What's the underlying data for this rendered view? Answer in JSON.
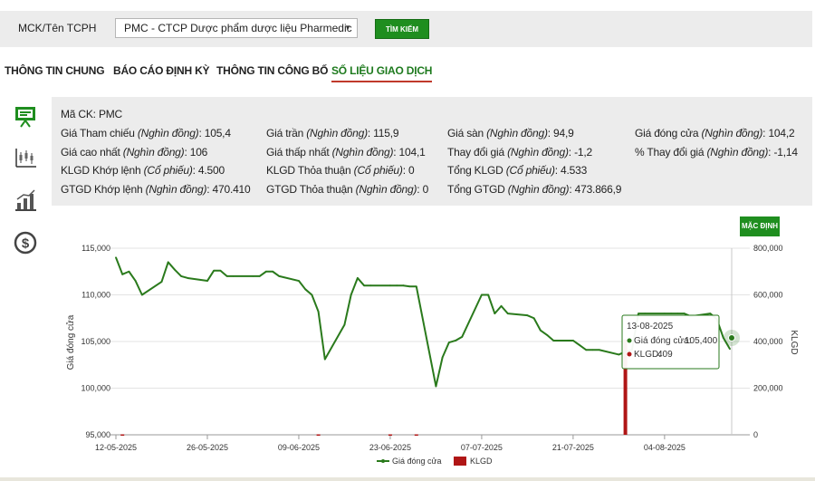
{
  "search": {
    "label": "MCK/Tên TCPH",
    "selected": "PMC - CTCP Dược phẩm dược liệu Pharmedic",
    "button": "TÌM KIẾM"
  },
  "tabs": [
    {
      "label": "THÔNG TIN CHUNG"
    },
    {
      "label": "BÁO CÁO ĐỊNH KỲ"
    },
    {
      "label": "THÔNG TIN CÔNG BỐ"
    },
    {
      "label": "SỐ LIỆU GIAO DỊCH",
      "active": true
    }
  ],
  "sidebar_icons": [
    "presentation-icon",
    "candlestick-icon",
    "bar-chart-icon",
    "dollar-icon"
  ],
  "info": {
    "code_label": "Mã CK:",
    "code": "PMC",
    "rows": [
      [
        {
          "label": "Giá Tham chiếu",
          "unit": "(Nghìn đồng)",
          "value": "105,4"
        },
        {
          "label": "Giá trần",
          "unit": "(Nghìn đồng)",
          "value": "115,9"
        },
        {
          "label": "Giá sàn",
          "unit": "(Nghìn đồng)",
          "value": "94,9"
        },
        {
          "label": "Giá đóng cửa",
          "unit": "(Nghìn đồng)",
          "value": "104,2"
        }
      ],
      [
        {
          "label": "Giá cao nhất",
          "unit": "(Nghìn đồng)",
          "value": "106"
        },
        {
          "label": "Giá thấp nhất",
          "unit": "(Nghìn đồng)",
          "value": "104,1"
        },
        {
          "label": "Thay đổi giá",
          "unit": "(Nghìn đồng)",
          "value": "-1,2"
        },
        {
          "label": "% Thay đổi giá",
          "unit": "(Nghìn đồng)",
          "value": "-1,14"
        }
      ],
      [
        {
          "label": "KLGD Khớp lệnh",
          "unit": "(Cổ phiếu)",
          "value": "4.500"
        },
        {
          "label": "KLGD Thỏa thuận",
          "unit": "(Cổ phiếu)",
          "value": "0"
        },
        {
          "label": "Tổng KLGD",
          "unit": "(Cổ phiếu)",
          "value": "4.533"
        }
      ],
      [
        {
          "label": "GTGD Khớp lệnh",
          "unit": "(Nghìn đồng)",
          "value": "470.410"
        },
        {
          "label": "GTGD Thỏa thuận",
          "unit": "(Nghìn đồng)",
          "value": "0"
        },
        {
          "label": "Tổng GTGD",
          "unit": "(Nghìn đồng)",
          "value": "473.866,9"
        }
      ]
    ]
  },
  "chart_button": "MẶC ĐỊNH",
  "chart_data": {
    "type": "line",
    "ylabel": "Giá đóng cửa",
    "y2label": "KLGD",
    "ylim": [
      95000,
      115000
    ],
    "y2lim": [
      0,
      800000
    ],
    "yticks": [
      "95,000",
      "100,000",
      "105,000",
      "110,000",
      "115,000"
    ],
    "y2ticks": [
      "0",
      "200,000",
      "400,000",
      "600,000",
      "800,000"
    ],
    "xticks": [
      "12-05-2025",
      "26-05-2025",
      "09-06-2025",
      "23-06-2025",
      "07-07-2025",
      "21-07-2025",
      "04-08-2025"
    ],
    "grid": true,
    "legend": "bottom",
    "series": [
      {
        "name": "Giá đóng cửa",
        "type": "line",
        "color": "#2a7a1c",
        "x": [
          "12-05",
          "13-05",
          "14-05",
          "15-05",
          "16-05",
          "19-05",
          "20-05",
          "21-05",
          "22-05",
          "23-05",
          "26-05",
          "27-05",
          "28-05",
          "29-05",
          "30-05",
          "02-06",
          "03-06",
          "04-06",
          "05-06",
          "06-06",
          "09-06",
          "10-06",
          "11-06",
          "12-06",
          "13-06",
          "16-06",
          "17-06",
          "18-06",
          "19-06",
          "20-06",
          "23-06",
          "24-06",
          "25-06",
          "26-06",
          "27-06",
          "30-06",
          "01-07",
          "02-07",
          "03-07",
          "04-07",
          "07-07",
          "08-07",
          "09-07",
          "10-07",
          "11-07",
          "14-07",
          "15-07",
          "16-07",
          "17-07",
          "18-07",
          "21-07",
          "22-07",
          "23-07",
          "24-07",
          "25-07",
          "28-07",
          "29-07",
          "30-07",
          "31-07",
          "01-08",
          "04-08",
          "05-08",
          "06-08",
          "07-08",
          "08-08",
          "11-08",
          "12-08",
          "13-08",
          "14-08"
        ],
        "values": [
          114000,
          112200,
          112500,
          111500,
          110000,
          111400,
          113500,
          112700,
          112000,
          111800,
          111500,
          112600,
          112600,
          112000,
          112000,
          112000,
          112000,
          112500,
          112500,
          112000,
          111500,
          110600,
          110000,
          108200,
          103100,
          106800,
          110000,
          111800,
          111000,
          111000,
          111000,
          111000,
          111000,
          110900,
          110900,
          100200,
          103300,
          104900,
          105100,
          105500,
          110000,
          110000,
          108000,
          108800,
          108000,
          107800,
          107500,
          106200,
          105700,
          105100,
          105100,
          104600,
          104100,
          104100,
          104100,
          103600,
          103900,
          104100,
          108000,
          108000,
          108000,
          108000,
          108000,
          108000,
          107700,
          108000,
          107400,
          105400,
          104200
        ]
      },
      {
        "name": "KLGD",
        "type": "bar",
        "color": "#b01616",
        "x": [
          "13-05",
          "12-06",
          "23-06",
          "27-06",
          "29-07"
        ],
        "values": [
          2000,
          2000,
          2000,
          2000,
          409000
        ]
      }
    ]
  },
  "tooltip": {
    "date": "13-08-2025",
    "price_label": "Giá đóng cửa:",
    "price_value": "105,400",
    "vol_label": "KLGD:",
    "vol_value": "409"
  }
}
